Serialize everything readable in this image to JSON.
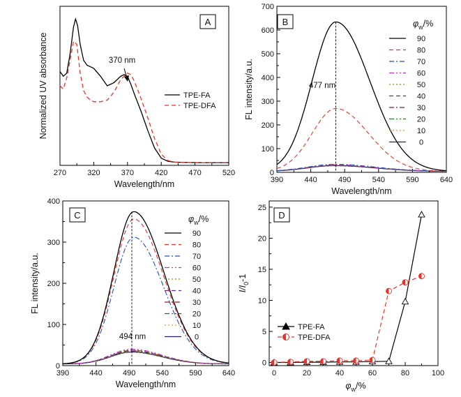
{
  "figure": {
    "panels": [
      {
        "id": "A",
        "letter": "A",
        "xlabel": "Wavelength/nm",
        "ylabel": "Normalized UV absorbance",
        "xticks": [
          270,
          320,
          370,
          420,
          470,
          520
        ],
        "yticks": [],
        "annotation": "370 nm"
      },
      {
        "id": "B",
        "letter": "B",
        "xlabel": "Wavelength/nm",
        "ylabel": "FL intensity/a.u.",
        "xticks": [
          390,
          440,
          490,
          540,
          590,
          640
        ],
        "yticks": [
          0,
          100,
          200,
          300,
          400,
          500,
          600,
          700
        ],
        "annotation": "477 nm",
        "legend_title_main": "φ",
        "legend_title_sub": "w",
        "legend_title_tail": "/%"
      },
      {
        "id": "C",
        "letter": "C",
        "xlabel": "Wavelength/nm",
        "ylabel": "FL intensity/a.u.",
        "xticks": [
          390,
          440,
          490,
          540,
          590,
          640
        ],
        "yticks": [
          0,
          100,
          200,
          300,
          400
        ],
        "annotation": "494 nm",
        "legend_title_main": "φ",
        "legend_title_sub": "w",
        "legend_title_tail": "/%"
      },
      {
        "id": "D",
        "letter": "D",
        "xlabel_main": "φ",
        "xlabel_sub": "w",
        "xlabel_tail": "/%",
        "ylabel_main": "I/I",
        "ylabel_sub": "0",
        "ylabel_tail": "-1",
        "xticks": [
          0,
          20,
          40,
          60,
          80,
          100
        ],
        "yticks": [
          0,
          5,
          10,
          15,
          20,
          25
        ]
      }
    ]
  },
  "chart_data": [
    {
      "type": "line",
      "panel": "A",
      "xlabel": "Wavelength/nm",
      "ylabel": "Normalized UV absorbance",
      "xlim": [
        270,
        520
      ],
      "ylim": [
        0,
        1
      ],
      "grid": false,
      "legend_position": "right",
      "series": [
        {
          "name": "TPE-FA",
          "color": "#000000",
          "dash": "solid",
          "x": [
            270,
            275,
            280,
            285,
            290,
            293,
            296,
            300,
            305,
            310,
            320,
            330,
            340,
            350,
            360,
            365,
            370,
            375,
            380,
            390,
            400,
            410,
            420,
            430,
            440,
            460,
            480,
            500,
            520
          ],
          "y": [
            0.59,
            0.56,
            0.58,
            0.7,
            0.87,
            0.92,
            0.88,
            0.76,
            0.66,
            0.63,
            0.61,
            0.56,
            0.5,
            0.52,
            0.56,
            0.57,
            0.56,
            0.51,
            0.45,
            0.34,
            0.22,
            0.11,
            0.045,
            0.025,
            0.02,
            0.018,
            0.017,
            0.017,
            0.017
          ]
        },
        {
          "name": "TPE-DFA",
          "color": "#e8332a",
          "dash": "dashed",
          "x": [
            270,
            275,
            280,
            285,
            290,
            295,
            300,
            305,
            310,
            315,
            320,
            330,
            340,
            350,
            360,
            370,
            375,
            380,
            390,
            400,
            410,
            420,
            430,
            440,
            460,
            480,
            500,
            520
          ],
          "y": [
            0.5,
            0.48,
            0.55,
            0.66,
            0.78,
            0.76,
            0.58,
            0.47,
            0.43,
            0.41,
            0.4,
            0.4,
            0.41,
            0.46,
            0.54,
            0.58,
            0.57,
            0.53,
            0.42,
            0.3,
            0.17,
            0.07,
            0.03,
            0.02,
            0.018,
            0.017,
            0.016,
            0.016
          ]
        }
      ]
    },
    {
      "type": "line",
      "panel": "B",
      "xlabel": "Wavelength/nm",
      "ylabel": "FL intensity/a.u.",
      "xlim": [
        390,
        640
      ],
      "ylim": [
        0,
        700
      ],
      "grid": false,
      "legend_position": "right",
      "peak_x": 477,
      "series": [
        {
          "name": "90",
          "color": "#000000",
          "dash": "solid",
          "peak": 630,
          "center": 477,
          "sigma_left": 35,
          "sigma_right": 50
        },
        {
          "name": "80",
          "color": "#e8332a",
          "dash": "dashed",
          "peak": 265,
          "center": 477,
          "sigma_left": 35,
          "sigma_right": 48
        },
        {
          "name": "70",
          "color": "#1f4fb4",
          "dash": "dashdot",
          "peak": 30,
          "center": 475,
          "sigma_left": 40,
          "sigma_right": 60
        },
        {
          "name": "60",
          "color": "#c032c8",
          "dash": "dashdotdot",
          "peak": 28,
          "center": 475,
          "sigma_left": 40,
          "sigma_right": 60
        },
        {
          "name": "50",
          "color": "#8a8a00",
          "dash": "dotted",
          "peak": 27,
          "center": 475,
          "sigma_left": 40,
          "sigma_right": 60
        },
        {
          "name": "40",
          "color": "#5a2a8a",
          "dash": "dashed",
          "peak": 26,
          "center": 475,
          "sigma_left": 40,
          "sigma_right": 60
        },
        {
          "name": "30",
          "color": "#8b1a1a",
          "dash": "dashdot",
          "peak": 25,
          "center": 475,
          "sigma_left": 40,
          "sigma_right": 60
        },
        {
          "name": "20",
          "color": "#2a6a2a",
          "dash": "dashdotdot",
          "peak": 25,
          "center": 475,
          "sigma_left": 40,
          "sigma_right": 60
        },
        {
          "name": "10",
          "color": "#e89a2a",
          "dash": "dotted",
          "peak": 24,
          "center": 475,
          "sigma_left": 40,
          "sigma_right": 60
        },
        {
          "name": "0",
          "color": "#202060",
          "dash": "solid",
          "peak": 24,
          "center": 475,
          "sigma_left": 40,
          "sigma_right": 60
        }
      ]
    },
    {
      "type": "line",
      "panel": "C",
      "xlabel": "Wavelength/nm",
      "ylabel": "FL intensity/a.u.",
      "xlim": [
        390,
        640
      ],
      "ylim": [
        0,
        400
      ],
      "grid": false,
      "legend_position": "right",
      "peak_x": 494,
      "series": [
        {
          "name": "90",
          "color": "#000000",
          "dash": "solid",
          "peak": 370,
          "center": 497,
          "sigma_left": 30,
          "sigma_right": 45
        },
        {
          "name": "80",
          "color": "#e8332a",
          "dash": "dashed",
          "peak": 352,
          "center": 497,
          "sigma_left": 30,
          "sigma_right": 45
        },
        {
          "name": "70",
          "color": "#1f4fb4",
          "dash": "dashdot",
          "peak": 308,
          "center": 497,
          "sigma_left": 30,
          "sigma_right": 45
        },
        {
          "name": "60",
          "color": "#c032c8",
          "dash": "dashdotdot",
          "peak": 36,
          "center": 494,
          "sigma_left": 32,
          "sigma_right": 45
        },
        {
          "name": "50",
          "color": "#8a8a00",
          "dash": "dotted",
          "peak": 34,
          "center": 494,
          "sigma_left": 32,
          "sigma_right": 45
        },
        {
          "name": "40",
          "color": "#5a2a8a",
          "dash": "dashed",
          "peak": 33,
          "center": 494,
          "sigma_left": 32,
          "sigma_right": 45
        },
        {
          "name": "30",
          "color": "#8b1a1a",
          "dash": "dashdot",
          "peak": 32,
          "center": 494,
          "sigma_left": 32,
          "sigma_right": 45
        },
        {
          "name": "20",
          "color": "#2a6a2a",
          "dash": "dashdotdot",
          "peak": 31,
          "center": 494,
          "sigma_left": 32,
          "sigma_right": 45
        },
        {
          "name": "10",
          "color": "#e89a2a",
          "dash": "dotted",
          "peak": 30,
          "center": 494,
          "sigma_left": 32,
          "sigma_right": 45
        },
        {
          "name": "0",
          "color": "#202060",
          "dash": "solid",
          "peak": 29,
          "center": 494,
          "sigma_left": 32,
          "sigma_right": 45
        }
      ]
    },
    {
      "type": "scatter",
      "panel": "D",
      "xlabel": "φw/%",
      "ylabel": "I/I0-1",
      "xlim": [
        -3,
        100
      ],
      "ylim": [
        -0.5,
        26
      ],
      "grid": false,
      "legend_position": "left",
      "series": [
        {
          "name": "TPE-FA",
          "color": "#000000",
          "dash": "solid",
          "marker": "triangle",
          "x": [
            0,
            10,
            20,
            30,
            40,
            50,
            60,
            70,
            80,
            90
          ],
          "y": [
            0.0,
            0.0,
            0.05,
            0.05,
            0.1,
            0.1,
            0.15,
            0.2,
            9.8,
            23.8
          ]
        },
        {
          "name": "TPE-DFA",
          "color": "#e8332a",
          "dash": "dashed",
          "marker": "half-circle",
          "x": [
            0,
            10,
            20,
            30,
            40,
            50,
            60,
            70,
            80,
            90
          ],
          "y": [
            0.0,
            0.1,
            0.2,
            0.2,
            0.3,
            0.3,
            0.4,
            11.5,
            12.9,
            13.9
          ]
        }
      ]
    }
  ]
}
